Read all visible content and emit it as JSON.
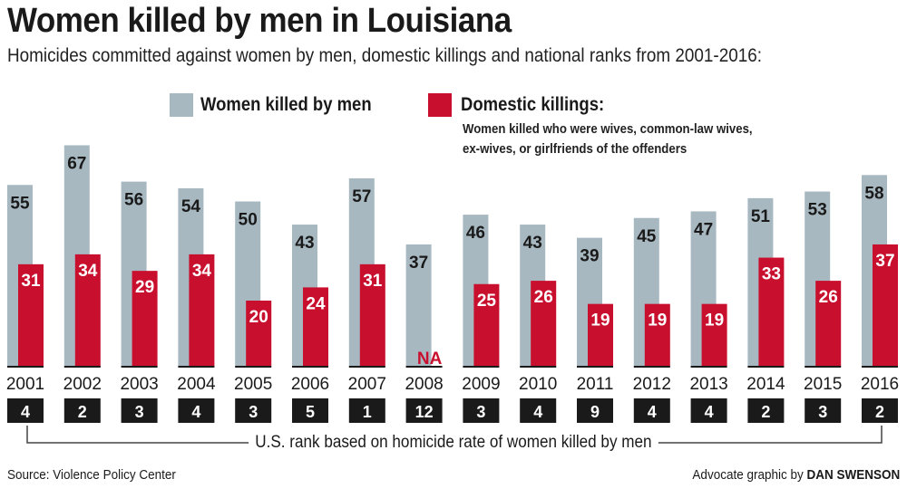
{
  "title": "Women killed by men in Louisiana",
  "subtitle": "Homicides committed against women by men, domestic killings and national ranks from 2001-2016:",
  "legend": {
    "women_killed": "Women killed by men",
    "domestic": "Domestic killings:",
    "domestic_note_1": "Women killed who were wives, common-law wives,",
    "domestic_note_2": "ex-wives, or girlfriends of the offenders"
  },
  "colors": {
    "women_killed": "#a7b8c1",
    "domestic": "#c8102e",
    "rank_box": "#1a1a1a"
  },
  "rank_note": "U.S. rank based on homicide rate of women killed by men",
  "source": "Source: Violence Policy Center",
  "credit_prefix": "Advocate graphic by ",
  "credit_name": "DAN SWENSON",
  "chart_data": {
    "type": "bar",
    "categories": [
      "2001",
      "2002",
      "2003",
      "2004",
      "2005",
      "2006",
      "2007",
      "2008",
      "2009",
      "2010",
      "2011",
      "2012",
      "2013",
      "2014",
      "2015",
      "2016"
    ],
    "series": [
      {
        "name": "Women killed by men",
        "values": [
          55,
          67,
          56,
          54,
          50,
          43,
          57,
          37,
          46,
          43,
          39,
          45,
          47,
          51,
          53,
          58
        ]
      },
      {
        "name": "Domestic killings",
        "values": [
          31,
          34,
          29,
          34,
          20,
          24,
          31,
          null,
          25,
          26,
          19,
          19,
          19,
          33,
          26,
          37
        ]
      }
    ],
    "missing_label": "NA",
    "ranks": [
      4,
      2,
      3,
      4,
      3,
      5,
      1,
      12,
      3,
      4,
      9,
      4,
      4,
      2,
      3,
      2
    ],
    "grid": false,
    "legend_position": "top"
  }
}
